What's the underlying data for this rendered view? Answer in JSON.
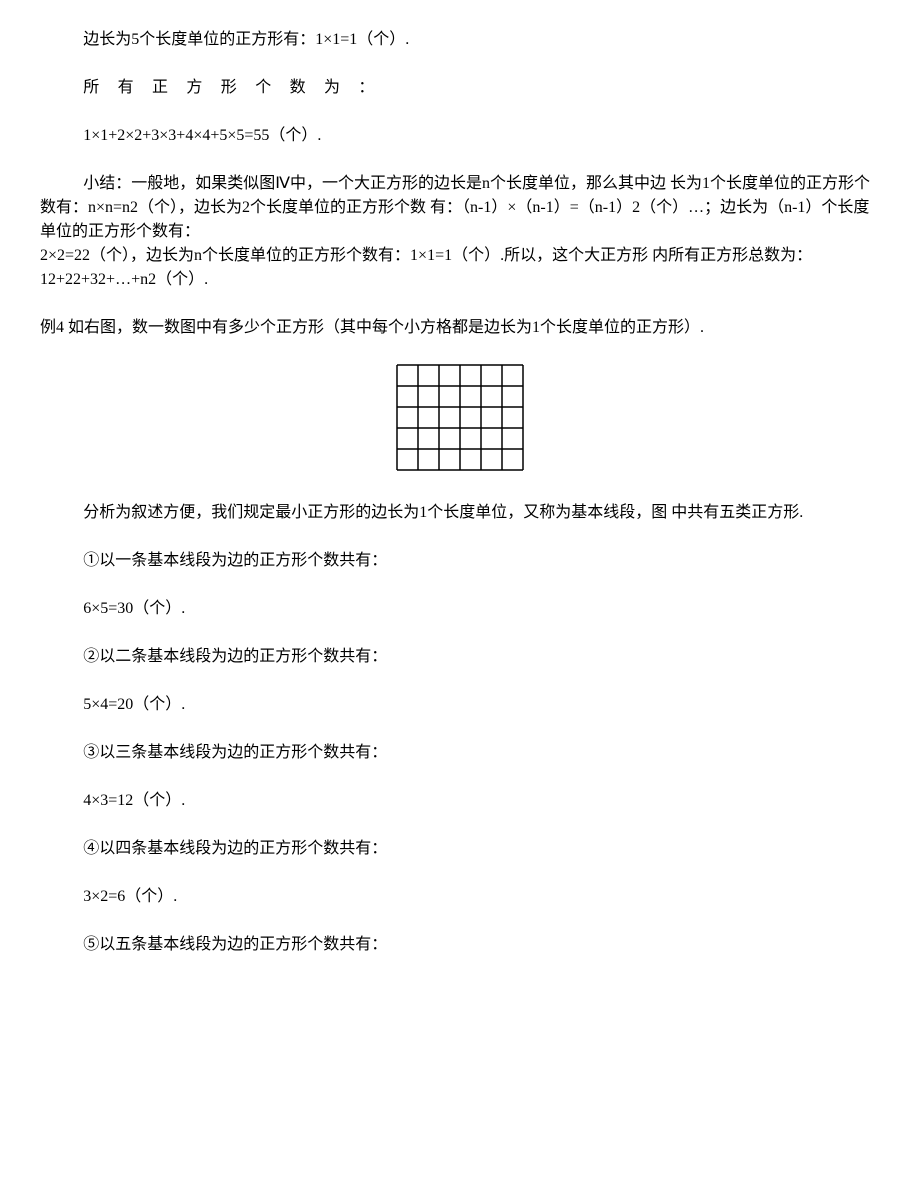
{
  "p1": "边长为5个长度单位的正方形有：1×1=1（个）.",
  "p2": "所 有 正 方 形 个 数 为 ：",
  "p3": "1×1+2×2+3×3+4×4+5×5=55（个）.",
  "p4a": "小结：一般地，如果类似图Ⅳ中，一个大正方形的边长是n个长度单位，那么其中边   长为1个长度单位的正方形个数有：n×n=n2（个），边长为2个长度单位的正方形个数  有：（n-1）×（n-1）=（n-1）2（个）…；边长为（n-1）个长度单位的正方形个数有：",
  "p4b": "2×2=22（个），边长为n个长度单位的正方形个数有：1×1=1（个）.所以，这个大正方形    内所有正方形总数为：12+22+32+…+n2（个）.",
  "p5": "例4  如右图，数一数图中有多少个正方形（其中每个小方格都是边长为1个长度单位的正方形）.",
  "grid": {
    "cols": 6,
    "rows": 5,
    "cell": 21,
    "stroke": "#000000",
    "stroke_width": 1.5
  },
  "p6": "分析为叙述方便，我们规定最小正方形的边长为1个长度单位，又称为基本线段，图    中共有五类正方形.",
  "p7": "①以一条基本线段为边的正方形个数共有：",
  "p8": "6×5=30（个）.",
  "p9": "②以二条基本线段为边的正方形个数共有：",
  "p10": "5×4=20（个）.",
  "p11": "③以三条基本线段为边的正方形个数共有：",
  "p12": "4×3=12（个）.",
  "p13": "④以四条基本线段为边的正方形个数共有：",
  "p14": "3×2=6（个）.",
  "p15": "⑤以五条基本线段为边的正方形个数共有："
}
